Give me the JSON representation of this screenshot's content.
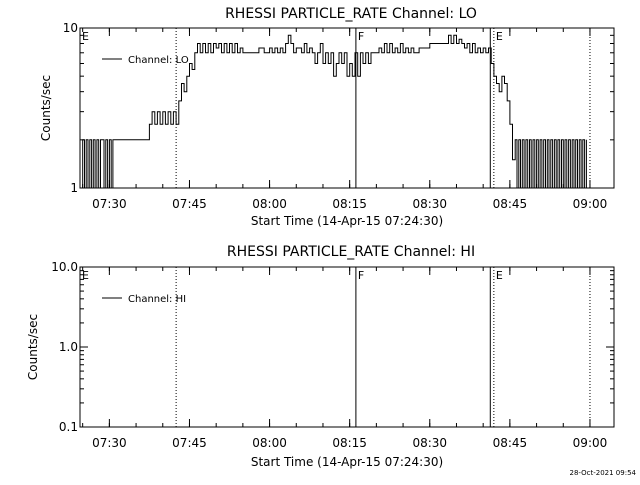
{
  "footer": {
    "timestamp": "28-Oct-2021 09:54"
  },
  "chart_data": [
    {
      "type": "line",
      "title": "RHESSI PARTICLE_RATE Channel: LO",
      "xlabel": "Start Time (14-Apr-15 07:24:30)",
      "ylabel": "Counts/sec",
      "y_scale": "log",
      "x_range": [
        "07:24:30",
        "09:04:30"
      ],
      "ylim": [
        1,
        10
      ],
      "y_ticks": [
        {
          "value": 1,
          "label": "1"
        },
        {
          "value": 10,
          "label": "10"
        }
      ],
      "x_ticks": [
        {
          "value": "07:30",
          "label": "07:30"
        },
        {
          "value": "07:45",
          "label": "07:45"
        },
        {
          "value": "08:00",
          "label": "08:00"
        },
        {
          "value": "08:15",
          "label": "08:15"
        },
        {
          "value": "08:30",
          "label": "08:30"
        },
        {
          "value": "08:45",
          "label": "08:45"
        },
        {
          "value": "09:00",
          "label": "09:00"
        }
      ],
      "legend": {
        "position": "top-left",
        "entries": [
          "Channel: LO"
        ]
      },
      "markers": [
        {
          "time": "07:24:30",
          "label": "E",
          "style": "none"
        },
        {
          "time": "07:42:30",
          "label": "",
          "style": "dotted"
        },
        {
          "time": "08:16:10",
          "label": "F",
          "style": "solid"
        },
        {
          "time": "08:41:20",
          "label": "",
          "style": "solid"
        },
        {
          "time": "08:42:00",
          "label": "E",
          "style": "dotted"
        },
        {
          "time": "09:00:00",
          "label": "",
          "style": "dotted"
        }
      ],
      "series": [
        {
          "name": "Channel: LO",
          "points": [
            [
              "07:24:30",
              1
            ],
            [
              "07:25:00",
              2
            ],
            [
              "07:25:20",
              1
            ],
            [
              "07:25:40",
              2
            ],
            [
              "07:26:00",
              1
            ],
            [
              "07:26:20",
              2
            ],
            [
              "07:26:40",
              1
            ],
            [
              "07:27:00",
              2
            ],
            [
              "07:27:20",
              1
            ],
            [
              "07:27:40",
              2
            ],
            [
              "07:28:00",
              1
            ],
            [
              "07:28:20",
              2
            ],
            [
              "07:28:40",
              2
            ],
            [
              "07:29:00",
              1
            ],
            [
              "07:29:20",
              2
            ],
            [
              "07:29:40",
              1
            ],
            [
              "07:30:00",
              2
            ],
            [
              "07:30:20",
              1
            ],
            [
              "07:30:40",
              2
            ],
            [
              "07:31:00",
              2
            ],
            [
              "07:33:00",
              2
            ],
            [
              "07:35:00",
              2
            ],
            [
              "07:37:00",
              2
            ],
            [
              "07:37:30",
              2.5
            ],
            [
              "07:38:00",
              3
            ],
            [
              "07:38:30",
              2.5
            ],
            [
              "07:39:00",
              3
            ],
            [
              "07:39:30",
              2.5
            ],
            [
              "07:40:00",
              3
            ],
            [
              "07:40:30",
              2.5
            ],
            [
              "07:41:00",
              3
            ],
            [
              "07:41:30",
              2.5
            ],
            [
              "07:42:00",
              3
            ],
            [
              "07:42:30",
              2.5
            ],
            [
              "07:43:00",
              3.5
            ],
            [
              "07:43:30",
              4.5
            ],
            [
              "07:44:00",
              4
            ],
            [
              "07:44:30",
              5
            ],
            [
              "07:45:00",
              6
            ],
            [
              "07:45:30",
              5.5
            ],
            [
              "07:46:00",
              7
            ],
            [
              "07:46:30",
              8
            ],
            [
              "07:47:00",
              7
            ],
            [
              "07:47:30",
              8
            ],
            [
              "07:48:00",
              7
            ],
            [
              "07:48:30",
              8
            ],
            [
              "07:49:00",
              7
            ],
            [
              "07:49:30",
              8
            ],
            [
              "07:50:00",
              7.5
            ],
            [
              "07:50:30",
              8
            ],
            [
              "07:51:00",
              7
            ],
            [
              "07:51:30",
              8
            ],
            [
              "07:52:00",
              7
            ],
            [
              "07:52:30",
              8
            ],
            [
              "07:53:00",
              7
            ],
            [
              "07:53:30",
              8
            ],
            [
              "07:54:00",
              7
            ],
            [
              "07:54:30",
              7.5
            ],
            [
              "07:55:00",
              7
            ],
            [
              "07:56:00",
              7
            ],
            [
              "07:57:00",
              7
            ],
            [
              "07:58:00",
              7.5
            ],
            [
              "07:59:00",
              7
            ],
            [
              "08:00:00",
              7.5
            ],
            [
              "08:00:30",
              7
            ],
            [
              "08:01:00",
              7.5
            ],
            [
              "08:01:30",
              7
            ],
            [
              "08:02:00",
              7.5
            ],
            [
              "08:02:30",
              7
            ],
            [
              "08:03:00",
              8
            ],
            [
              "08:03:30",
              9
            ],
            [
              "08:04:00",
              8
            ],
            [
              "08:04:30",
              7
            ],
            [
              "08:05:00",
              7.5
            ],
            [
              "08:06:00",
              7
            ],
            [
              "08:06:30",
              8
            ],
            [
              "08:07:00",
              7
            ],
            [
              "08:07:30",
              7.5
            ],
            [
              "08:08:00",
              7
            ],
            [
              "08:08:30",
              6
            ],
            [
              "08:09:00",
              7
            ],
            [
              "08:09:30",
              8
            ],
            [
              "08:10:00",
              6
            ],
            [
              "08:10:30",
              7
            ],
            [
              "08:11:00",
              6
            ],
            [
              "08:11:30",
              7
            ],
            [
              "08:12:00",
              5
            ],
            [
              "08:12:30",
              6
            ],
            [
              "08:13:00",
              7
            ],
            [
              "08:13:30",
              6
            ],
            [
              "08:14:00",
              7
            ],
            [
              "08:14:30",
              5
            ],
            [
              "08:15:00",
              6
            ],
            [
              "08:15:30",
              5
            ],
            [
              "08:16:00",
              7
            ],
            [
              "08:16:30",
              5
            ],
            [
              "08:17:00",
              7
            ],
            [
              "08:17:30",
              6
            ],
            [
              "08:18:00",
              7
            ],
            [
              "08:18:30",
              6
            ],
            [
              "08:19:00",
              7
            ],
            [
              "08:20:00",
              7
            ],
            [
              "08:20:30",
              7.5
            ],
            [
              "08:21:00",
              7
            ],
            [
              "08:21:30",
              8
            ],
            [
              "08:22:00",
              7
            ],
            [
              "08:22:30",
              8
            ],
            [
              "08:23:00",
              7
            ],
            [
              "08:23:30",
              7.5
            ],
            [
              "08:24:00",
              7
            ],
            [
              "08:24:30",
              8
            ],
            [
              "08:25:00",
              7
            ],
            [
              "08:25:30",
              7.5
            ],
            [
              "08:26:00",
              7
            ],
            [
              "08:26:30",
              7.5
            ],
            [
              "08:27:00",
              7
            ],
            [
              "08:28:00",
              7.5
            ],
            [
              "08:29:00",
              7.5
            ],
            [
              "08:30:00",
              8
            ],
            [
              "08:31:00",
              8
            ],
            [
              "08:32:00",
              8
            ],
            [
              "08:33:00",
              8
            ],
            [
              "08:33:30",
              9
            ],
            [
              "08:34:00",
              8
            ],
            [
              "08:34:30",
              9
            ],
            [
              "08:35:00",
              8
            ],
            [
              "08:35:30",
              8.5
            ],
            [
              "08:36:00",
              8
            ],
            [
              "08:36:30",
              7.5
            ],
            [
              "08:37:00",
              8
            ],
            [
              "08:37:30",
              7
            ],
            [
              "08:38:00",
              8
            ],
            [
              "08:38:30",
              7
            ],
            [
              "08:39:00",
              7.5
            ],
            [
              "08:39:30",
              7
            ],
            [
              "08:40:00",
              7.5
            ],
            [
              "08:40:30",
              7
            ],
            [
              "08:41:00",
              7.5
            ],
            [
              "08:41:30",
              6
            ],
            [
              "08:42:00",
              5
            ],
            [
              "08:42:30",
              4.5
            ],
            [
              "08:43:00",
              4
            ],
            [
              "08:43:30",
              5
            ],
            [
              "08:44:00",
              4.5
            ],
            [
              "08:44:30",
              3.5
            ],
            [
              "08:45:00",
              2.5
            ],
            [
              "08:45:30",
              1.5
            ],
            [
              "08:46:00",
              2
            ],
            [
              "08:46:20",
              1
            ],
            [
              "08:46:40",
              2
            ],
            [
              "08:47:00",
              1
            ],
            [
              "08:47:20",
              2
            ],
            [
              "08:47:40",
              1
            ],
            [
              "08:48:00",
              2
            ],
            [
              "08:48:20",
              1
            ],
            [
              "08:48:40",
              2
            ],
            [
              "08:49:00",
              1
            ],
            [
              "08:49:20",
              2
            ],
            [
              "08:49:40",
              1
            ],
            [
              "08:50:00",
              2
            ],
            [
              "08:50:20",
              1
            ],
            [
              "08:50:40",
              2
            ],
            [
              "08:51:00",
              1
            ],
            [
              "08:51:20",
              2
            ],
            [
              "08:51:40",
              1
            ],
            [
              "08:52:00",
              2
            ],
            [
              "08:52:20",
              1
            ],
            [
              "08:52:40",
              2
            ],
            [
              "08:53:00",
              1
            ],
            [
              "08:53:20",
              2
            ],
            [
              "08:53:40",
              1
            ],
            [
              "08:54:00",
              2
            ],
            [
              "08:54:20",
              1
            ],
            [
              "08:54:40",
              2
            ],
            [
              "08:55:00",
              1
            ],
            [
              "08:55:20",
              2
            ],
            [
              "08:55:40",
              1
            ],
            [
              "08:56:00",
              2
            ],
            [
              "08:56:20",
              1
            ],
            [
              "08:56:40",
              2
            ],
            [
              "08:57:00",
              1
            ],
            [
              "08:57:20",
              2
            ],
            [
              "08:57:40",
              1
            ],
            [
              "08:58:00",
              2
            ],
            [
              "08:58:20",
              1
            ],
            [
              "08:58:40",
              2
            ],
            [
              "08:59:00",
              1
            ],
            [
              "08:59:20",
              2
            ]
          ]
        }
      ]
    },
    {
      "type": "line",
      "title": "RHESSI PARTICLE_RATE Channel: HI",
      "xlabel": "Start Time (14-Apr-15 07:24:30)",
      "ylabel": "Counts/sec",
      "y_scale": "log",
      "x_range": [
        "07:24:30",
        "09:04:30"
      ],
      "ylim": [
        0.1,
        10
      ],
      "y_ticks": [
        {
          "value": 0.1,
          "label": "0.1"
        },
        {
          "value": 1,
          "label": "1.0"
        },
        {
          "value": 10,
          "label": "10.0"
        }
      ],
      "x_ticks": [
        {
          "value": "07:30",
          "label": "07:30"
        },
        {
          "value": "07:45",
          "label": "07:45"
        },
        {
          "value": "08:00",
          "label": "08:00"
        },
        {
          "value": "08:15",
          "label": "08:15"
        },
        {
          "value": "08:30",
          "label": "08:30"
        },
        {
          "value": "08:45",
          "label": "08:45"
        },
        {
          "value": "09:00",
          "label": "09:00"
        }
      ],
      "legend": {
        "position": "top-left",
        "entries": [
          "Channel: HI"
        ]
      },
      "markers": [
        {
          "time": "07:24:30",
          "label": "E",
          "style": "none"
        },
        {
          "time": "07:42:30",
          "label": "",
          "style": "dotted"
        },
        {
          "time": "08:16:10",
          "label": "F",
          "style": "solid"
        },
        {
          "time": "08:41:20",
          "label": "",
          "style": "solid"
        },
        {
          "time": "08:42:00",
          "label": "E",
          "style": "dotted"
        },
        {
          "time": "09:00:00",
          "label": "",
          "style": "dotted"
        }
      ],
      "series": [
        {
          "name": "Channel: HI",
          "points": []
        }
      ]
    }
  ]
}
